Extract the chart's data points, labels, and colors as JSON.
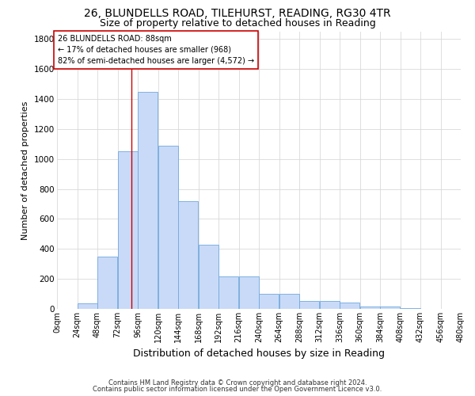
{
  "title_line1": "26, BLUNDELLS ROAD, TILEHURST, READING, RG30 4TR",
  "title_line2": "Size of property relative to detached houses in Reading",
  "xlabel": "Distribution of detached houses by size in Reading",
  "ylabel": "Number of detached properties",
  "footnote_line1": "Contains HM Land Registry data © Crown copyright and database right 2024.",
  "footnote_line2": "Contains public sector information licensed under the Open Government Licence v3.0.",
  "bin_labels": [
    "0sqm",
    "24sqm",
    "48sqm",
    "72sqm",
    "96sqm",
    "120sqm",
    "144sqm",
    "168sqm",
    "192sqm",
    "216sqm",
    "240sqm",
    "264sqm",
    "288sqm",
    "312sqm",
    "336sqm",
    "360sqm",
    "384sqm",
    "408sqm",
    "432sqm",
    "456sqm",
    "480sqm"
  ],
  "bar_values": [
    0,
    35,
    350,
    1050,
    1450,
    1090,
    720,
    430,
    215,
    215,
    100,
    100,
    55,
    55,
    40,
    15,
    15,
    5,
    2,
    1,
    0
  ],
  "bar_color": "#c9daf8",
  "bar_edge_color": "#6fa8dc",
  "property_size": 88,
  "vline_color": "#cc0000",
  "annotation_title": "26 BLUNDELLS ROAD: 88sqm",
  "annotation_line1": "← 17% of detached houses are smaller (968)",
  "annotation_line2": "82% of semi-detached houses are larger (4,572) →",
  "annotation_box_color": "#ffffff",
  "annotation_box_edge_color": "#cc0000",
  "ylim": [
    0,
    1850
  ],
  "yticks": [
    0,
    200,
    400,
    600,
    800,
    1000,
    1200,
    1400,
    1600,
    1800
  ],
  "grid_color": "#d9d9d9",
  "background_color": "#ffffff",
  "title_fontsize": 10,
  "subtitle_fontsize": 9,
  "ylabel_fontsize": 8,
  "xlabel_fontsize": 9,
  "tick_fontsize": 7,
  "annotation_fontsize": 7,
  "footnote_fontsize": 6
}
